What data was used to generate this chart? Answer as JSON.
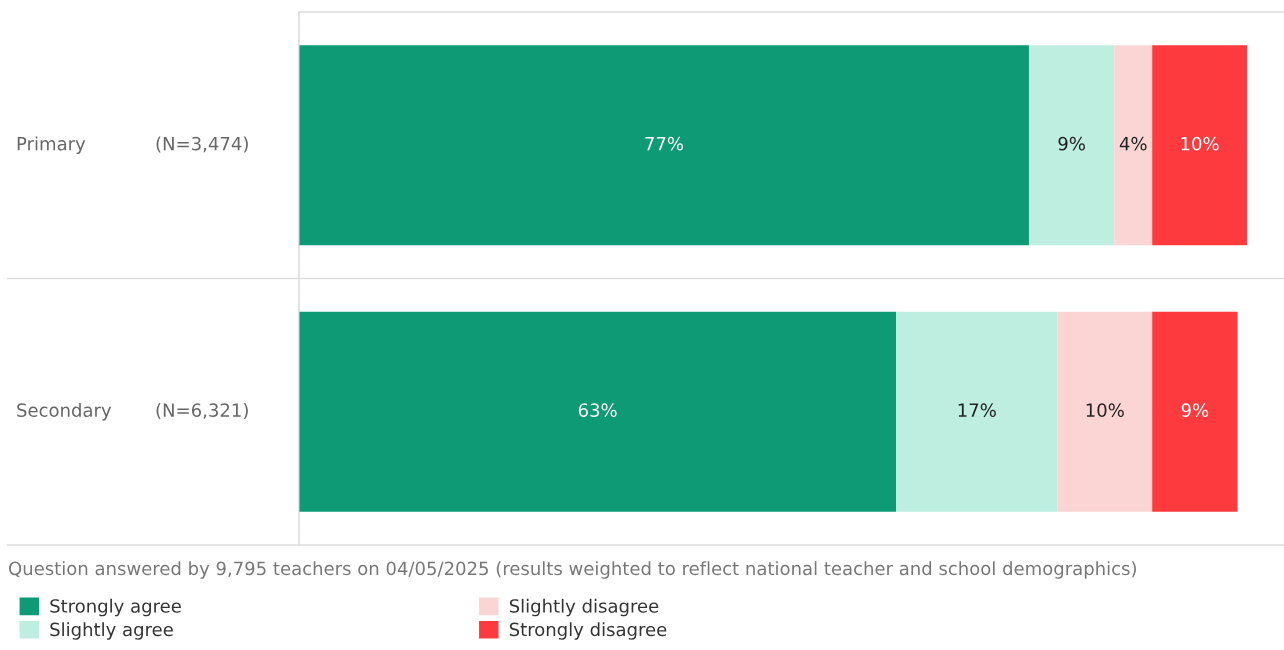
{
  "chart_data": {
    "type": "bar",
    "orientation": "horizontal",
    "stacked": true,
    "legend": "bottom",
    "categories": [
      "Primary",
      "Secondary"
    ],
    "series": [
      {
        "name": "Strongly agree",
        "color": "#0e9a74",
        "values": [
          77,
          63
        ],
        "value_labels": [
          "77%",
          "63%"
        ]
      },
      {
        "name": "Slightly agree",
        "color": "#bdeee0",
        "values": [
          9,
          17
        ],
        "value_labels": [
          "9%",
          "17%"
        ]
      },
      {
        "name": "Slightly disagree",
        "color": "#fbd5d3",
        "values": [
          4,
          10
        ],
        "value_labels": [
          "4%",
          "10%"
        ]
      },
      {
        "name": "Strongly disagree",
        "color": "#fd3b3e",
        "values": [
          10,
          9
        ],
        "value_labels": [
          "10%",
          "9%"
        ]
      }
    ],
    "annotations": [
      "(N=3,474)",
      "(N=6,321)",
      "Question answered by 9,795 teachers on 04/05/2025 (results weighted to reflect national teacher and school demographics)"
    ]
  }
}
